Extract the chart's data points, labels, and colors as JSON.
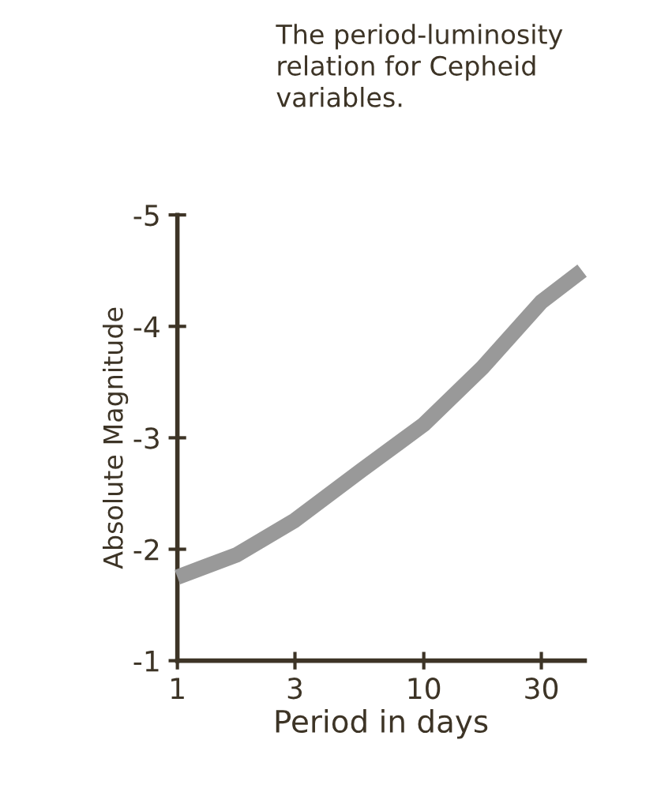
{
  "chart_data": {
    "type": "line",
    "title": "The period-luminosity relation for Cepheid variables.",
    "xlabel": "Period in days",
    "ylabel": "Absolute Magnitude",
    "log": "x",
    "x": [
      1,
      1.74,
      3,
      5.6,
      10,
      17.3,
      30,
      43.9
    ],
    "series": [
      {
        "color": "#999999",
        "values": [
          -1.75,
          -1.95,
          -2.26,
          -2.71,
          -3.12,
          -3.63,
          -4.22,
          -4.5
        ]
      }
    ],
    "xlim": [
      1,
      45
    ],
    "xticks": [
      1,
      3,
      10,
      30
    ],
    "ylim": [
      -1,
      -5
    ],
    "yticks": [
      -1,
      -2,
      -3,
      -4,
      -5
    ],
    "grid": false,
    "legend": false,
    "marker": "none",
    "line_style": "solid"
  }
}
